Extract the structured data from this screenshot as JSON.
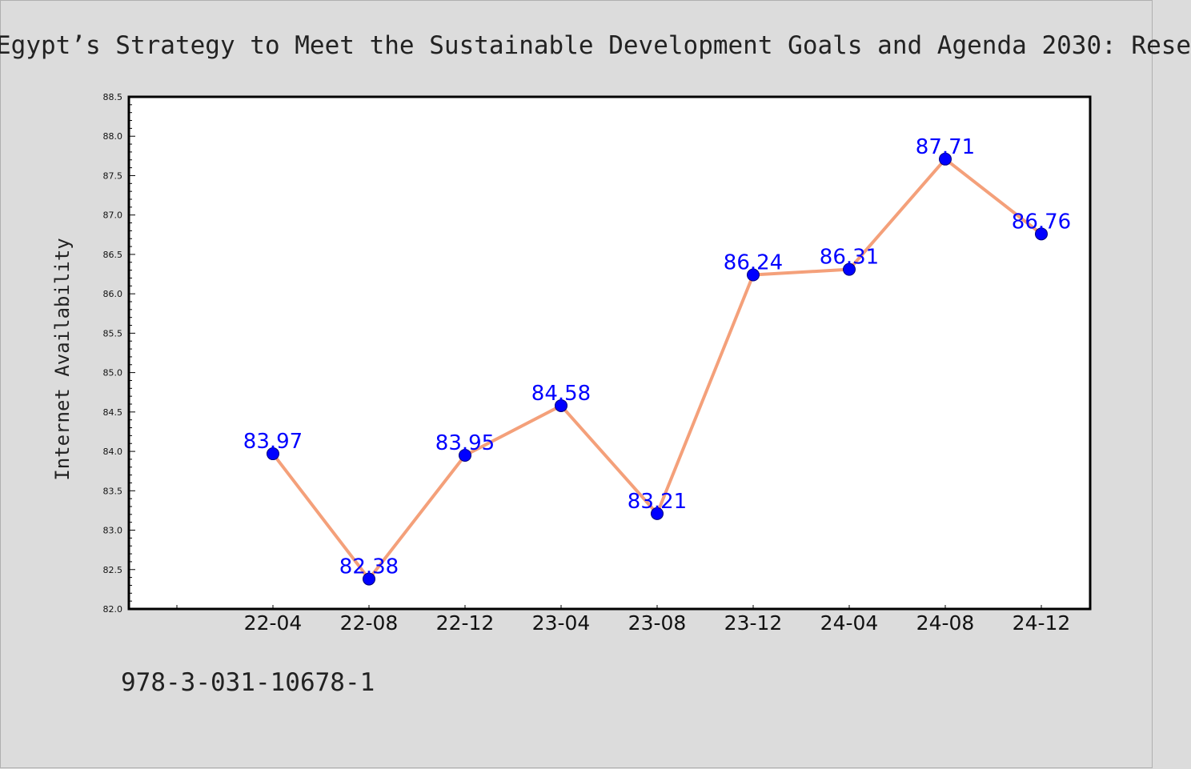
{
  "title": "Egypt’s Strategy to Meet the Sustainable Development Goals and Agenda 2030: Rese",
  "footer": "978-3-031-10678-1",
  "chart_data": {
    "type": "line",
    "title": "Egypt’s Strategy to Meet the Sustainable Development Goals and Agenda 2030: Rese",
    "xlabel": "",
    "ylabel": "Internet Availability",
    "categories": [
      "22-04",
      "22-08",
      "22-12",
      "23-04",
      "23-08",
      "23-12",
      "24-04",
      "24-08",
      "24-12"
    ],
    "series": [
      {
        "values": [
          83.97,
          82.38,
          83.95,
          84.58,
          83.21,
          86.24,
          86.31,
          87.71,
          86.76
        ],
        "value_labels": [
          "83.97",
          "82.38",
          "83.95",
          "84.58",
          "83.21",
          "86.24",
          "86.31",
          "87.71",
          "86.76"
        ]
      }
    ],
    "ylim": [
      82.0,
      88.5
    ],
    "yticks": [
      "82.0",
      "82.5",
      "83.0",
      "83.5",
      "84.0",
      "84.5",
      "85.0",
      "85.5",
      "86.0",
      "86.5",
      "87.0",
      "87.5",
      "88.0",
      "88.5"
    ],
    "grid": false,
    "legend": "none",
    "colors": {
      "line": "#f4a07a",
      "marker": "#0000ff",
      "marker_edge": "#00007a",
      "data_label": "#0000ff",
      "plot_bg": "#ffffff",
      "page_bg": "#dcdcdc"
    }
  }
}
